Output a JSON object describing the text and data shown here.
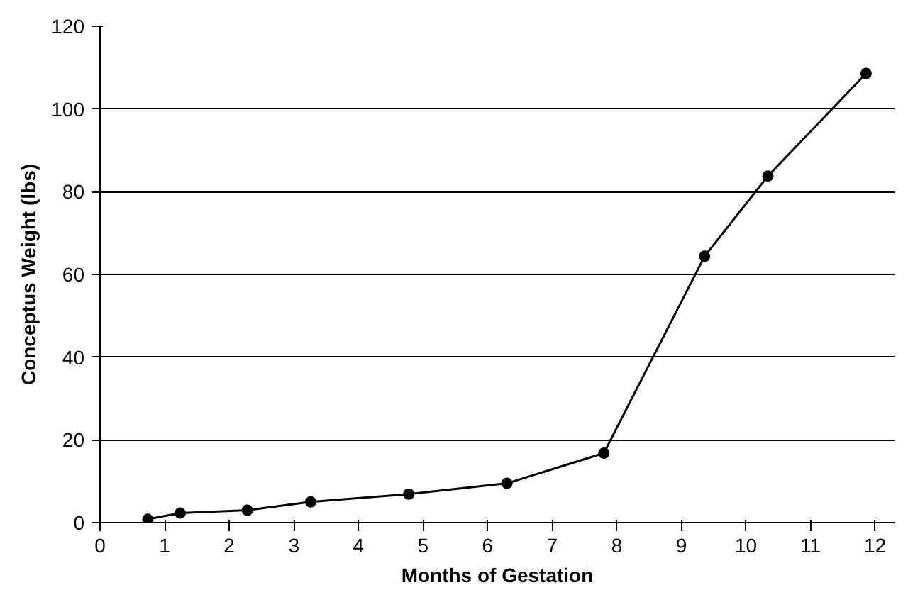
{
  "chart_data": {
    "type": "line",
    "xlabel": "Months of Gestation",
    "ylabel": "Conceptus Weight (lbs)",
    "x": [
      0.74,
      1.24,
      2.28,
      3.26,
      4.78,
      6.3,
      7.8,
      9.36,
      10.34,
      11.86
    ],
    "series": [
      {
        "color": "#000000",
        "values": [
          0.8,
          2.3,
          3,
          5,
          6.9,
          9.5,
          16.8,
          64.4,
          83.8,
          108.6
        ]
      }
    ],
    "xlim": [
      0,
      12.3
    ],
    "ylim": [
      0,
      120
    ],
    "xticks": [
      0,
      1,
      2,
      3,
      4,
      5,
      6,
      7,
      8,
      9,
      10,
      11,
      12
    ],
    "yticks": [
      0,
      20,
      40,
      60,
      80,
      100,
      120
    ],
    "grid": "y",
    "marker": "circle",
    "line_style": "solid"
  }
}
